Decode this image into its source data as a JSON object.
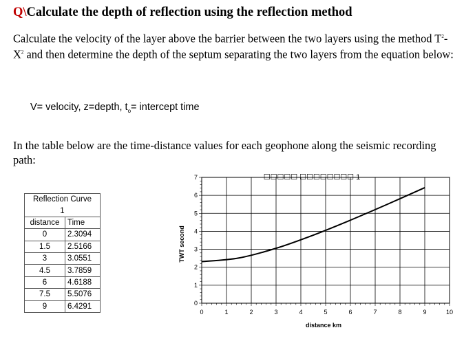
{
  "title": {
    "marker": "Q\\",
    "text": "Calculate the depth of reflection using the reflection method"
  },
  "intro": {
    "part1": "Calculate the velocity of the layer above the barrier between the two layers using the method T",
    "exp1": "2",
    "mid": "-X",
    "exp2": "2",
    "part2": " and then determine the depth of the septum separating the two layers from the equation below:"
  },
  "variables": {
    "v": "V= velocity, z=depth, t",
    "sub": "o",
    "rest": "= intercept time"
  },
  "table_intro": "In the table below are the time-distance values for each geophone along the seismic recording path:",
  "table": {
    "title": "Reflection Curve",
    "subtitle": "1",
    "headers": [
      "distance",
      "Time"
    ],
    "rows": [
      [
        "0",
        "2.3094"
      ],
      [
        "1.5",
        "2.5166"
      ],
      [
        "3",
        "3.0551"
      ],
      [
        "4.5",
        "3.7859"
      ],
      [
        "6",
        "4.6188"
      ],
      [
        "7.5",
        "5.5076"
      ],
      [
        "9",
        "6.4291"
      ]
    ]
  },
  "chart_data": {
    "type": "line",
    "title": "☐☐☐☐☐ ☐☐☐☐☐☐☐☐ 1",
    "xlabel": "distance km",
    "ylabel": "TWT second",
    "xlim": [
      0,
      10
    ],
    "ylim": [
      0,
      7
    ],
    "xticks": [
      "0",
      "1",
      "2",
      "3",
      "4",
      "5",
      "6",
      "7",
      "8",
      "9",
      "10"
    ],
    "yticks": [
      "0",
      "1",
      "2",
      "3",
      "4",
      "5",
      "6",
      "7"
    ],
    "grid": true,
    "series": [
      {
        "x": [
          0,
          1.5,
          3,
          4.5,
          6,
          7.5,
          9
        ],
        "y": [
          2.3094,
          2.5166,
          3.0551,
          3.7859,
          4.6188,
          5.5076,
          6.4291
        ]
      }
    ]
  }
}
